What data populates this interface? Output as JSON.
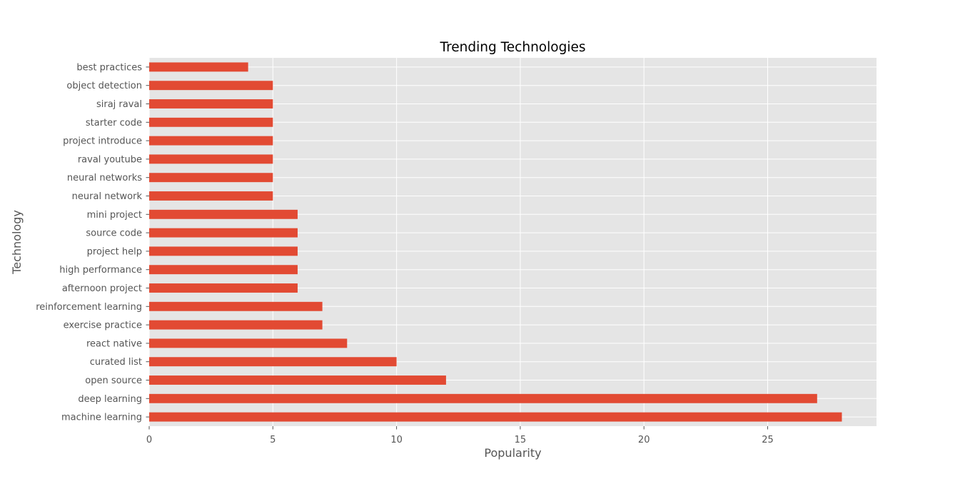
{
  "chart_data": {
    "type": "bar",
    "orientation": "horizontal",
    "title": "Trending Technologies",
    "xlabel": "Popularity",
    "ylabel": "Technology",
    "categories": [
      "machine learning",
      "deep learning",
      "open source",
      "curated list",
      "react native",
      "exercise practice",
      "reinforcement learning",
      "afternoon project",
      "high performance",
      "project help",
      "source code",
      "mini project",
      "neural network",
      "neural networks",
      "raval youtube",
      "project introduce",
      "starter code",
      "siraj raval",
      "object detection",
      "best practices"
    ],
    "values": [
      28,
      27,
      12,
      10,
      8,
      7,
      7,
      6,
      6,
      6,
      6,
      6,
      5,
      5,
      5,
      5,
      5,
      5,
      5,
      4
    ],
    "xlim": [
      0,
      29.4
    ],
    "xticks": [
      0,
      5,
      10,
      15,
      20,
      25
    ],
    "grid": true,
    "legend": "none",
    "colors": {
      "bar": "#E24A33",
      "plot_background": "#E5E5E5",
      "grid": "#FFFFFF",
      "text": "#555555",
      "title": "#000000"
    }
  }
}
